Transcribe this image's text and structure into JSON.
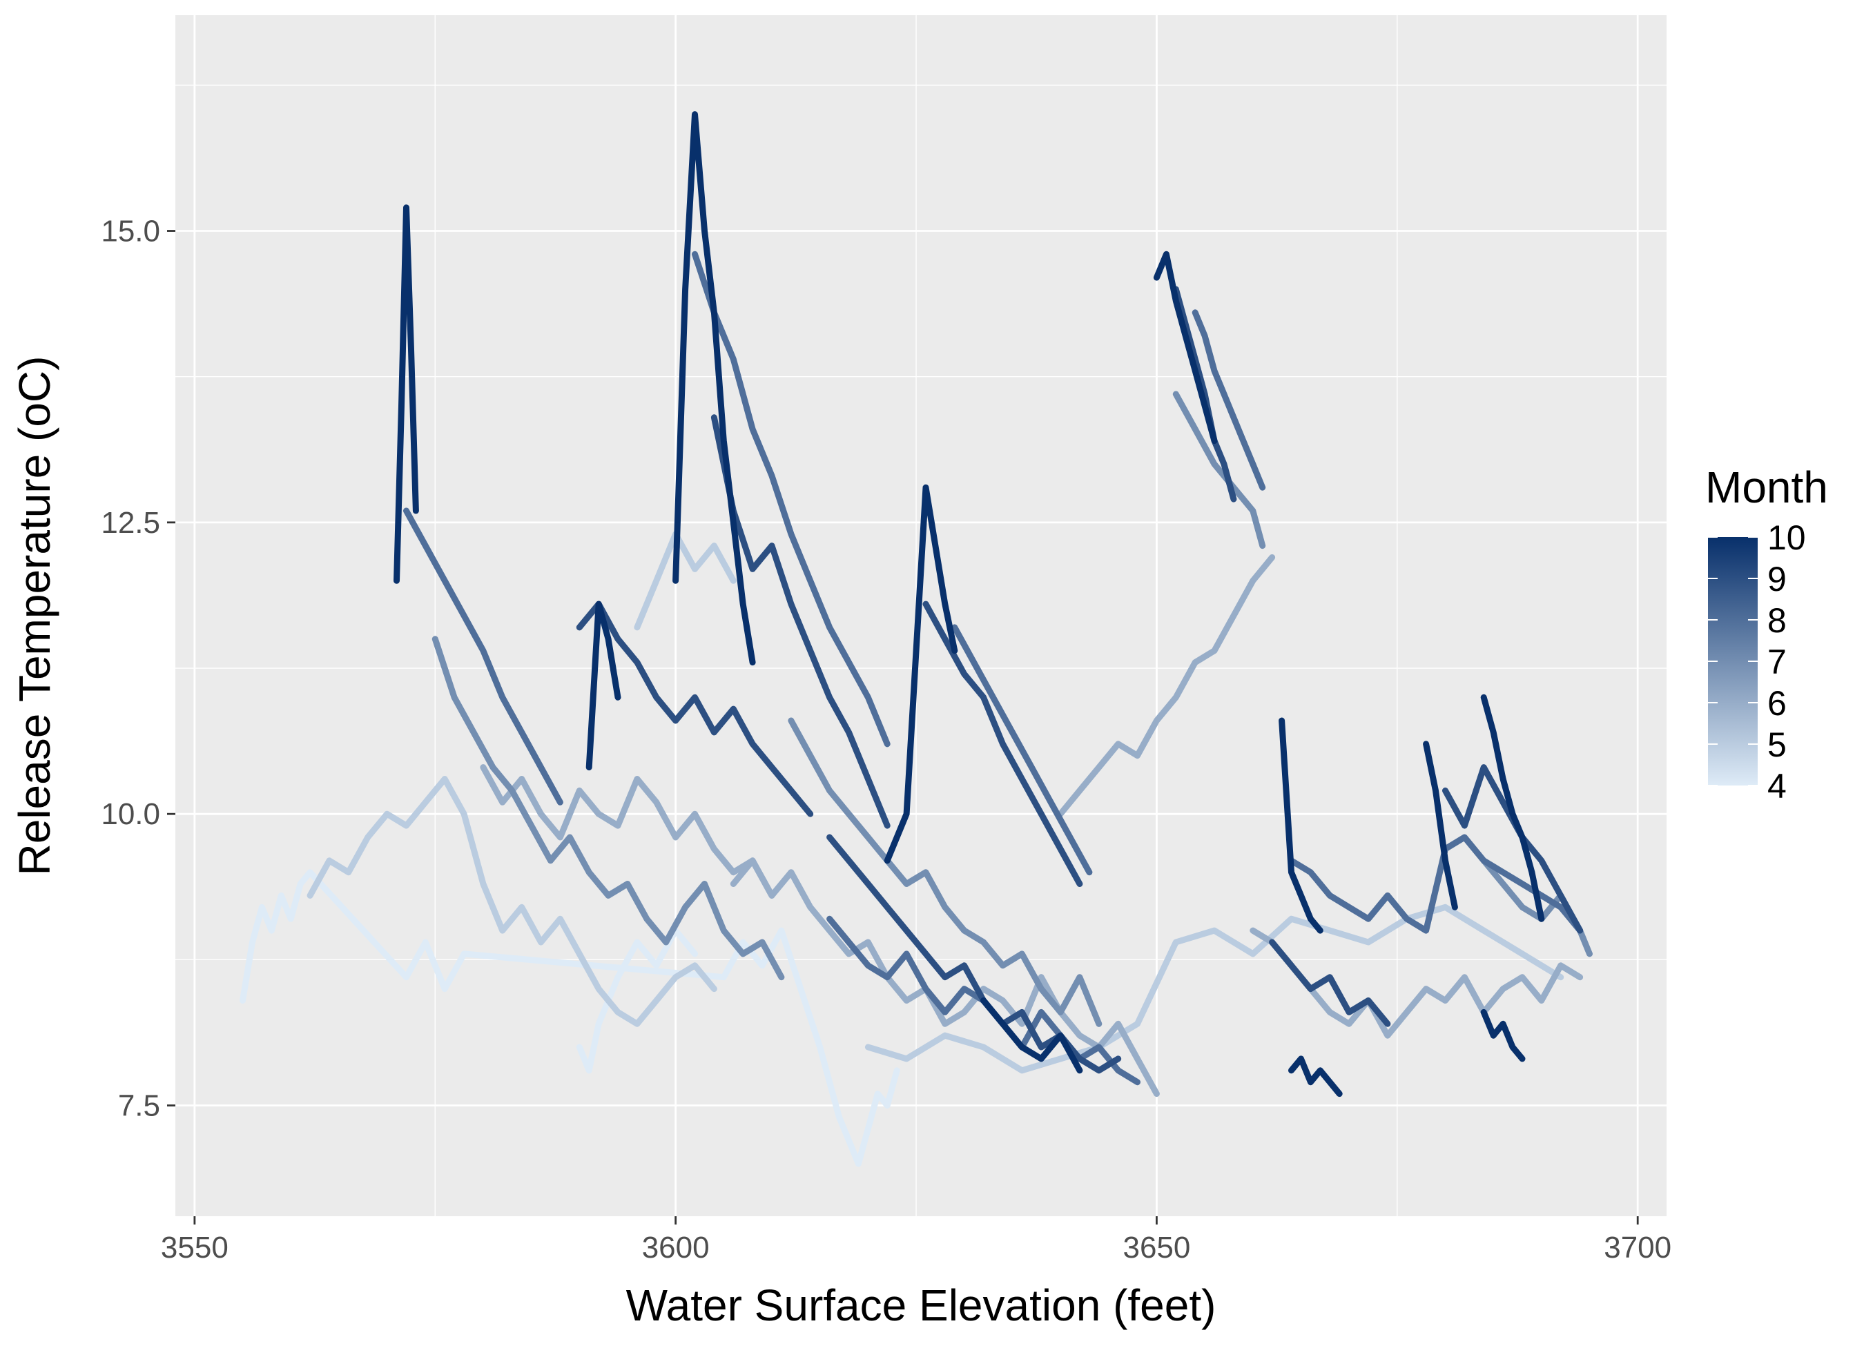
{
  "chart_data": {
    "type": "line",
    "xlabel": "Water Surface Elevation (feet)",
    "ylabel": "Release Temperature (oC)",
    "xlim": [
      3548,
      3703
    ],
    "ylim": [
      6.55,
      16.85
    ],
    "x_ticks": [
      3550,
      3600,
      3650,
      3700
    ],
    "x_tick_labels": [
      "3550",
      "3600",
      "3650",
      "3700"
    ],
    "y_ticks": [
      7.5,
      10.0,
      12.5,
      15.0
    ],
    "y_tick_labels": [
      "7.5",
      "10.0",
      "12.5",
      "15.0"
    ],
    "grid": true,
    "legend": {
      "title": "Month",
      "position": "right",
      "min": 4,
      "max": 10,
      "labels": [
        "10",
        "9",
        "8",
        "7",
        "6",
        "5",
        "4"
      ],
      "color_low": "#deebf7",
      "color_high": "#08306b"
    },
    "series": [
      {
        "month": 4,
        "x": [
          3555,
          3556,
          3557,
          3558,
          3559,
          3560,
          3561,
          3562,
          3572,
          3574,
          3576,
          3578,
          3605,
          3607,
          3609,
          3611,
          3613,
          3615,
          3617,
          3618,
          3619,
          3620,
          3621,
          3622,
          3623
        ],
        "y": [
          8.4,
          8.9,
          9.2,
          9.0,
          9.3,
          9.1,
          9.4,
          9.5,
          8.6,
          8.9,
          8.5,
          8.8,
          8.6,
          8.9,
          8.7,
          9.0,
          8.5,
          8.0,
          7.4,
          7.2,
          7.0,
          7.3,
          7.6,
          7.5,
          7.8
        ]
      },
      {
        "month": 4,
        "x": [
          3590,
          3591,
          3592,
          3594,
          3596,
          3598,
          3600,
          3602
        ],
        "y": [
          8.0,
          7.8,
          8.2,
          8.6,
          8.9,
          8.7,
          9.0,
          8.8
        ]
      },
      {
        "month": 5,
        "x": [
          3562,
          3564,
          3566,
          3568,
          3570,
          3572,
          3574,
          3576,
          3578,
          3580,
          3582,
          3584,
          3586,
          3588,
          3590,
          3592,
          3594,
          3596,
          3598,
          3600,
          3602,
          3604
        ],
        "y": [
          9.3,
          9.6,
          9.5,
          9.8,
          10.0,
          9.9,
          10.1,
          10.3,
          10.0,
          9.4,
          9.0,
          9.2,
          8.9,
          9.1,
          8.8,
          8.5,
          8.3,
          8.2,
          8.4,
          8.6,
          8.7,
          8.5
        ]
      },
      {
        "month": 5,
        "x": [
          3620,
          3624,
          3628,
          3632,
          3636,
          3640,
          3644,
          3648,
          3652,
          3656,
          3660,
          3664,
          3668,
          3672,
          3676,
          3680,
          3684,
          3688,
          3692
        ],
        "y": [
          8.0,
          7.9,
          8.1,
          8.0,
          7.8,
          7.9,
          8.0,
          8.2,
          8.9,
          9.0,
          8.8,
          9.1,
          9.0,
          8.9,
          9.1,
          9.2,
          9.0,
          8.8,
          8.6
        ]
      },
      {
        "month": 5,
        "x": [
          3596,
          3598,
          3600,
          3602,
          3604,
          3606
        ],
        "y": [
          11.6,
          12.0,
          12.4,
          12.1,
          12.3,
          12.0
        ]
      },
      {
        "month": 6,
        "x": [
          3606,
          3608,
          3610,
          3612,
          3614,
          3616,
          3618,
          3620,
          3622,
          3624,
          3626,
          3628,
          3630,
          3632,
          3634,
          3636,
          3638,
          3640,
          3642,
          3644,
          3646,
          3648,
          3650
        ],
        "y": [
          9.4,
          9.6,
          9.3,
          9.5,
          9.2,
          9.0,
          8.8,
          8.9,
          8.6,
          8.4,
          8.5,
          8.2,
          8.3,
          8.5,
          8.4,
          8.2,
          8.6,
          8.3,
          8.1,
          8.0,
          8.2,
          7.9,
          7.6
        ]
      },
      {
        "month": 6,
        "x": [
          3640,
          3642,
          3644,
          3646,
          3648,
          3650,
          3652,
          3654,
          3656,
          3658,
          3660,
          3662
        ],
        "y": [
          10.0,
          10.2,
          10.4,
          10.6,
          10.5,
          10.8,
          11.0,
          11.3,
          11.4,
          11.7,
          12.0,
          12.2
        ]
      },
      {
        "month": 6,
        "x": [
          3580,
          3582,
          3584,
          3586,
          3588,
          3590,
          3592,
          3594,
          3596,
          3598,
          3600,
          3602,
          3604,
          3606,
          3608,
          3610
        ],
        "y": [
          10.4,
          10.1,
          10.3,
          10.0,
          9.8,
          10.2,
          10.0,
          9.9,
          10.3,
          10.1,
          9.8,
          10.0,
          9.7,
          9.5,
          9.6,
          9.3
        ]
      },
      {
        "month": 6,
        "x": [
          3660,
          3662,
          3664,
          3666,
          3668,
          3670,
          3672,
          3674,
          3676,
          3678,
          3680,
          3682,
          3684,
          3686,
          3688,
          3690,
          3692,
          3694
        ],
        "y": [
          9.0,
          8.9,
          8.7,
          8.5,
          8.3,
          8.2,
          8.4,
          8.1,
          8.3,
          8.5,
          8.4,
          8.6,
          8.3,
          8.5,
          8.6,
          8.4,
          8.7,
          8.6
        ]
      },
      {
        "month": 7,
        "x": [
          3575,
          3577,
          3579,
          3581,
          3583,
          3585,
          3587,
          3589,
          3591,
          3593,
          3595,
          3597,
          3599,
          3601,
          3603,
          3605,
          3607,
          3609,
          3611
        ],
        "y": [
          11.5,
          11.0,
          10.7,
          10.4,
          10.2,
          9.9,
          9.6,
          9.8,
          9.5,
          9.3,
          9.4,
          9.1,
          8.9,
          9.2,
          9.4,
          9.0,
          8.8,
          8.9,
          8.6
        ]
      },
      {
        "month": 7,
        "x": [
          3612,
          3614,
          3616,
          3618,
          3620,
          3622,
          3624,
          3626,
          3628,
          3630,
          3632,
          3634,
          3636,
          3638,
          3640,
          3642,
          3644
        ],
        "y": [
          10.8,
          10.5,
          10.2,
          10.0,
          9.8,
          9.6,
          9.4,
          9.5,
          9.2,
          9.0,
          8.9,
          8.7,
          8.8,
          8.5,
          8.3,
          8.6,
          8.2
        ]
      },
      {
        "month": 7,
        "x": [
          3652,
          3654,
          3656,
          3658,
          3660,
          3661
        ],
        "y": [
          13.6,
          13.3,
          13.0,
          12.8,
          12.6,
          12.3
        ]
      },
      {
        "month": 7,
        "x": [
          3684,
          3686,
          3688,
          3690,
          3692,
          3694,
          3695
        ],
        "y": [
          9.6,
          9.4,
          9.2,
          9.1,
          9.3,
          9.0,
          8.8
        ]
      },
      {
        "month": 8,
        "x": [
          3572,
          3574,
          3576,
          3578,
          3580,
          3582,
          3584,
          3586,
          3588
        ],
        "y": [
          12.6,
          12.3,
          12.0,
          11.7,
          11.4,
          11.0,
          10.7,
          10.4,
          10.1
        ]
      },
      {
        "month": 8,
        "x": [
          3602,
          3604,
          3606,
          3608,
          3610,
          3612,
          3614,
          3616,
          3618,
          3620,
          3622
        ],
        "y": [
          14.8,
          14.3,
          13.9,
          13.3,
          12.9,
          12.4,
          12.0,
          11.6,
          11.3,
          11.0,
          10.6
        ]
      },
      {
        "month": 8,
        "x": [
          3629,
          3631,
          3633,
          3635,
          3637,
          3639,
          3641,
          3643
        ],
        "y": [
          11.6,
          11.3,
          11.0,
          10.7,
          10.4,
          10.1,
          9.8,
          9.5
        ]
      },
      {
        "month": 8,
        "x": [
          3654,
          3655,
          3656,
          3657,
          3658,
          3659,
          3660,
          3661
        ],
        "y": [
          14.3,
          14.1,
          13.8,
          13.6,
          13.4,
          13.2,
          13.0,
          12.8
        ]
      },
      {
        "month": 8,
        "x": [
          3664,
          3666,
          3668,
          3670,
          3672,
          3674,
          3676,
          3678,
          3680,
          3682,
          3684,
          3686,
          3688,
          3690,
          3692,
          3694
        ],
        "y": [
          9.6,
          9.5,
          9.3,
          9.2,
          9.1,
          9.3,
          9.1,
          9.0,
          9.7,
          9.8,
          9.6,
          9.5,
          9.4,
          9.3,
          9.2,
          9.0
        ]
      },
      {
        "month": 8,
        "x": [
          3616,
          3618,
          3620,
          3622,
          3624,
          3626,
          3628,
          3630,
          3632,
          3634,
          3636,
          3638,
          3640,
          3642,
          3644,
          3646,
          3648
        ],
        "y": [
          9.1,
          8.9,
          8.7,
          8.6,
          8.8,
          8.5,
          8.3,
          8.5,
          8.4,
          8.2,
          8.0,
          8.3,
          8.1,
          7.9,
          8.0,
          7.8,
          7.7
        ]
      },
      {
        "month": 9,
        "x": [
          3590,
          3592,
          3594,
          3596,
          3598,
          3600,
          3602,
          3604,
          3606,
          3608,
          3610,
          3612,
          3614
        ],
        "y": [
          11.6,
          11.8,
          11.5,
          11.3,
          11.0,
          10.8,
          11.0,
          10.7,
          10.9,
          10.6,
          10.4,
          10.2,
          10.0
        ]
      },
      {
        "month": 9,
        "x": [
          3604,
          3606,
          3608,
          3610,
          3612,
          3614,
          3616,
          3618,
          3620,
          3622
        ],
        "y": [
          13.4,
          12.6,
          12.1,
          12.3,
          11.8,
          11.4,
          11.0,
          10.7,
          10.3,
          9.9
        ]
      },
      {
        "month": 9,
        "x": [
          3626,
          3628,
          3630,
          3632,
          3634,
          3636,
          3638,
          3640,
          3642
        ],
        "y": [
          11.8,
          11.5,
          11.2,
          11.0,
          10.6,
          10.3,
          10.0,
          9.7,
          9.4
        ]
      },
      {
        "month": 9,
        "x": [
          3652,
          3653,
          3654,
          3655,
          3656,
          3657,
          3658
        ],
        "y": [
          14.5,
          14.2,
          13.9,
          13.6,
          13.2,
          13.0,
          12.7
        ]
      },
      {
        "month": 9,
        "x": [
          3680,
          3682,
          3684,
          3686,
          3688,
          3690,
          3692,
          3694
        ],
        "y": [
          10.2,
          9.9,
          10.4,
          10.1,
          9.8,
          9.6,
          9.3,
          9.0
        ]
      },
      {
        "month": 9,
        "x": [
          3616,
          3618,
          3620,
          3622,
          3624,
          3626,
          3628,
          3630,
          3632,
          3634,
          3636,
          3638,
          3640,
          3642,
          3644,
          3646
        ],
        "y": [
          9.8,
          9.6,
          9.4,
          9.2,
          9.0,
          8.8,
          8.6,
          8.7,
          8.4,
          8.2,
          8.3,
          8.0,
          8.1,
          7.9,
          7.8,
          7.9
        ]
      },
      {
        "month": 9,
        "x": [
          3662,
          3664,
          3666,
          3668,
          3670,
          3672,
          3674
        ],
        "y": [
          8.9,
          8.7,
          8.5,
          8.6,
          8.3,
          8.4,
          8.2
        ]
      },
      {
        "month": 10,
        "x": [
          3571,
          3571.5,
          3572,
          3572.5,
          3573
        ],
        "y": [
          12.0,
          13.5,
          15.2,
          14.0,
          12.6
        ]
      },
      {
        "month": 10,
        "x": [
          3600,
          3601,
          3602,
          3603,
          3604,
          3605,
          3606,
          3607,
          3608
        ],
        "y": [
          12.0,
          14.5,
          16.0,
          15.0,
          14.3,
          13.2,
          12.5,
          11.8,
          11.3
        ]
      },
      {
        "month": 10,
        "x": [
          3591,
          3592,
          3593,
          3594
        ],
        "y": [
          10.4,
          11.8,
          11.5,
          11.0
        ]
      },
      {
        "month": 10,
        "x": [
          3622,
          3624,
          3626,
          3627,
          3628,
          3629
        ],
        "y": [
          9.6,
          10.0,
          12.8,
          12.3,
          11.8,
          11.4
        ]
      },
      {
        "month": 10,
        "x": [
          3650,
          3651,
          3652,
          3653,
          3654,
          3655,
          3656
        ],
        "y": [
          14.6,
          14.8,
          14.4,
          14.1,
          13.8,
          13.5,
          13.2
        ]
      },
      {
        "month": 10,
        "x": [
          3663,
          3664,
          3665,
          3666,
          3667
        ],
        "y": [
          10.8,
          9.5,
          9.3,
          9.1,
          9.0
        ]
      },
      {
        "month": 10,
        "x": [
          3664,
          3665,
          3666,
          3667,
          3668,
          3669
        ],
        "y": [
          7.8,
          7.9,
          7.7,
          7.8,
          7.7,
          7.6
        ]
      },
      {
        "month": 10,
        "x": [
          3678,
          3679,
          3680,
          3681
        ],
        "y": [
          10.6,
          10.2,
          9.6,
          9.2
        ]
      },
      {
        "month": 10,
        "x": [
          3684,
          3685,
          3686,
          3687,
          3688,
          3689,
          3690
        ],
        "y": [
          11.0,
          10.7,
          10.3,
          10.0,
          9.8,
          9.5,
          9.1
        ]
      },
      {
        "month": 10,
        "x": [
          3684,
          3685,
          3686,
          3687,
          3688
        ],
        "y": [
          8.3,
          8.1,
          8.2,
          8.0,
          7.9
        ]
      },
      {
        "month": 10,
        "x": [
          3632,
          3634,
          3636,
          3638,
          3640,
          3642
        ],
        "y": [
          8.4,
          8.2,
          8.0,
          7.9,
          8.1,
          7.8
        ]
      }
    ]
  }
}
